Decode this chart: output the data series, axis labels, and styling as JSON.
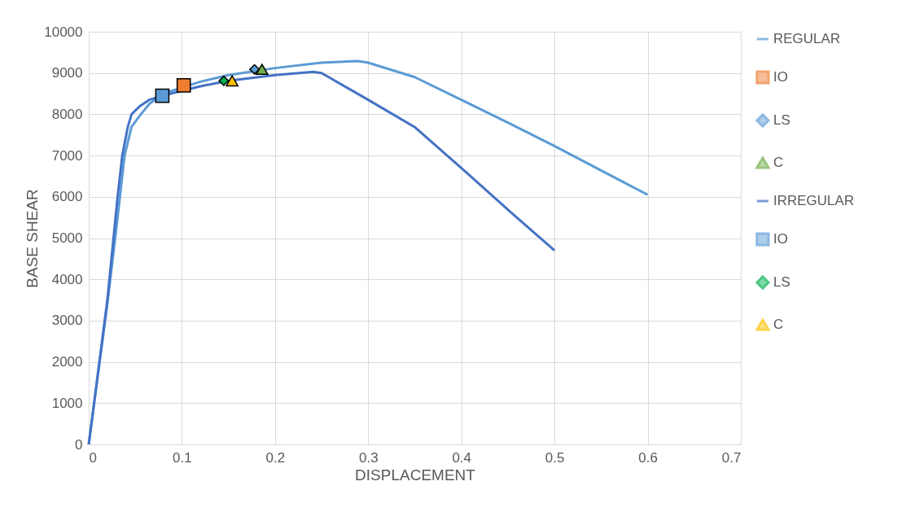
{
  "chart_data": {
    "type": "line",
    "xlabel": "DISPLACEMENT",
    "ylabel": "BASE SHEAR",
    "xlim": [
      0,
      0.7
    ],
    "xticks": [
      0,
      0.1,
      0.2,
      0.3,
      0.4,
      0.5,
      0.6,
      0.7
    ],
    "ylim": [
      0,
      10000
    ],
    "yticks": [
      0,
      1000,
      2000,
      3000,
      4000,
      5000,
      6000,
      7000,
      8000,
      9000,
      10000
    ],
    "grid": true,
    "legend": "right",
    "series": [
      {
        "name": "REGULAR",
        "type": "line",
        "marker": "none",
        "color": "#5b9bd5",
        "x": [
          0,
          0.02,
          0.03,
          0.0385,
          0.046,
          0.056,
          0.065,
          0.08,
          0.12,
          0.15,
          0.2,
          0.25,
          0.289,
          0.3,
          0.35,
          0.4,
          0.45,
          0.5,
          0.55,
          0.6
        ],
        "values": [
          0,
          3400,
          5300,
          7000,
          7700,
          8000,
          8250,
          8500,
          8790,
          8950,
          9120,
          9250,
          9290,
          9250,
          8900,
          8350,
          7800,
          7230,
          6640,
          6050
        ]
      },
      {
        "name": "IO",
        "type": "scatter",
        "marker": "square",
        "color": "#ed7d31",
        "x": [
          0.102
        ],
        "values": [
          8700
        ]
      },
      {
        "name": "LS",
        "type": "scatter",
        "marker": "diamond",
        "color": "#5b9bd5",
        "x": [
          0.178
        ],
        "values": [
          9090
        ]
      },
      {
        "name": "C",
        "type": "scatter",
        "marker": "triangle",
        "color": "#70ad47",
        "x": [
          0.186
        ],
        "values": [
          9090
        ]
      },
      {
        "name": "IRREGULAR",
        "type": "line",
        "marker": "none",
        "color": "#4472c4",
        "x": [
          0,
          0.02,
          0.031,
          0.036,
          0.042,
          0.046,
          0.055,
          0.065,
          0.079,
          0.12,
          0.15,
          0.2,
          0.241,
          0.25,
          0.3,
          0.35,
          0.4,
          0.45,
          0.5
        ],
        "values": [
          0,
          3500,
          6000,
          7000,
          7700,
          8000,
          8200,
          8350,
          8450,
          8680,
          8810,
          8950,
          9030,
          9000,
          8350,
          7690,
          6700,
          5690,
          4700
        ]
      },
      {
        "name": "IO",
        "type": "scatter",
        "marker": "square",
        "color": "#5b9bd5",
        "x": [
          0.079
        ],
        "values": [
          8450
        ]
      },
      {
        "name": "LS",
        "type": "scatter",
        "marker": "diamond",
        "color": "#00b050",
        "x": [
          0.145
        ],
        "values": [
          8810
        ]
      },
      {
        "name": "C",
        "type": "scatter",
        "marker": "triangle",
        "color": "#ffc000",
        "x": [
          0.154
        ],
        "values": [
          8810
        ]
      }
    ]
  }
}
